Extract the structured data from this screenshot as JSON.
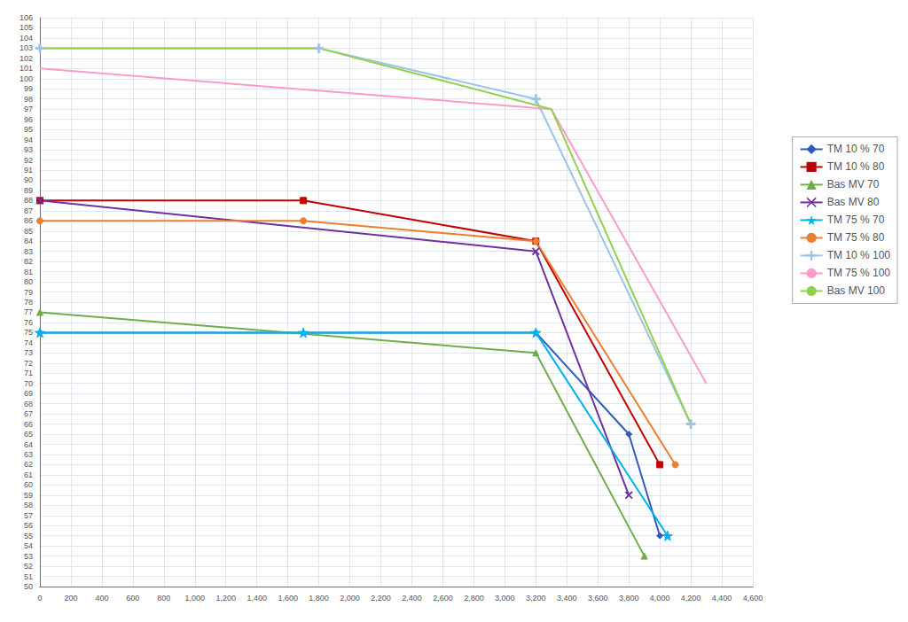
{
  "chart_data": {
    "type": "line",
    "series": [
      {
        "name": "TM 10 % 70",
        "color": "#2E5CB8",
        "marker": "diamond",
        "x": [
          0,
          3200,
          3800,
          4000
        ],
        "values": [
          75,
          75,
          65,
          55
        ]
      },
      {
        "name": "TM 10 % 80",
        "color": "#C00000",
        "marker": "square",
        "x": [
          0,
          1700,
          3200,
          4000
        ],
        "values": [
          88,
          88,
          84,
          62
        ]
      },
      {
        "name": "Bas MV 70",
        "color": "#70AD47",
        "marker": "triangle",
        "x": [
          0,
          3200,
          3900
        ],
        "values": [
          77,
          73,
          53
        ]
      },
      {
        "name": "Bas MV 80",
        "color": "#7030A0",
        "marker": "x",
        "x": [
          0,
          3200,
          3800
        ],
        "values": [
          88,
          83,
          59
        ]
      },
      {
        "name": "TM 75 % 70",
        "color": "#00B0F0",
        "marker": "star",
        "x": [
          0,
          1700,
          3200,
          4050
        ],
        "values": [
          75,
          75,
          75,
          55
        ]
      },
      {
        "name": "TM 75 % 80",
        "color": "#ED7D31",
        "marker": "circle",
        "x": [
          0,
          1700,
          3200,
          4100
        ],
        "values": [
          86,
          86,
          84,
          62
        ]
      },
      {
        "name": "TM 10 % 100",
        "color": "#9DC3E6",
        "marker": "plus",
        "x": [
          0,
          1800,
          3200,
          4200
        ],
        "values": [
          103,
          103,
          98,
          66
        ]
      },
      {
        "name": "TM 75 % 100",
        "color": "#FF99CC",
        "marker": "none",
        "x": [
          0,
          3300,
          4300
        ],
        "values": [
          101,
          97,
          70
        ]
      },
      {
        "name": "Bas MV 100",
        "color": "#92D050",
        "marker": "none",
        "x": [
          0,
          1800,
          3300,
          4200
        ],
        "values": [
          103,
          103,
          97,
          66
        ]
      }
    ],
    "xlim": [
      0,
      4600
    ],
    "ylim": [
      50,
      106
    ],
    "xticks": [
      0,
      200,
      400,
      600,
      800,
      1000,
      1200,
      1400,
      1600,
      1800,
      2000,
      2200,
      2400,
      2600,
      2800,
      3000,
      3200,
      3400,
      3600,
      3800,
      4000,
      4200,
      4400,
      4600
    ],
    "yticks": [
      50,
      51,
      52,
      53,
      54,
      55,
      56,
      57,
      58,
      59,
      60,
      61,
      62,
      63,
      64,
      65,
      66,
      67,
      68,
      69,
      70,
      71,
      72,
      73,
      74,
      75,
      76,
      77,
      78,
      79,
      80,
      81,
      82,
      83,
      84,
      85,
      86,
      87,
      88,
      89,
      90,
      91,
      92,
      93,
      94,
      95,
      96,
      97,
      98,
      99,
      100,
      101,
      102,
      103,
      104,
      105,
      106
    ],
    "grid": true,
    "legend": "right"
  }
}
